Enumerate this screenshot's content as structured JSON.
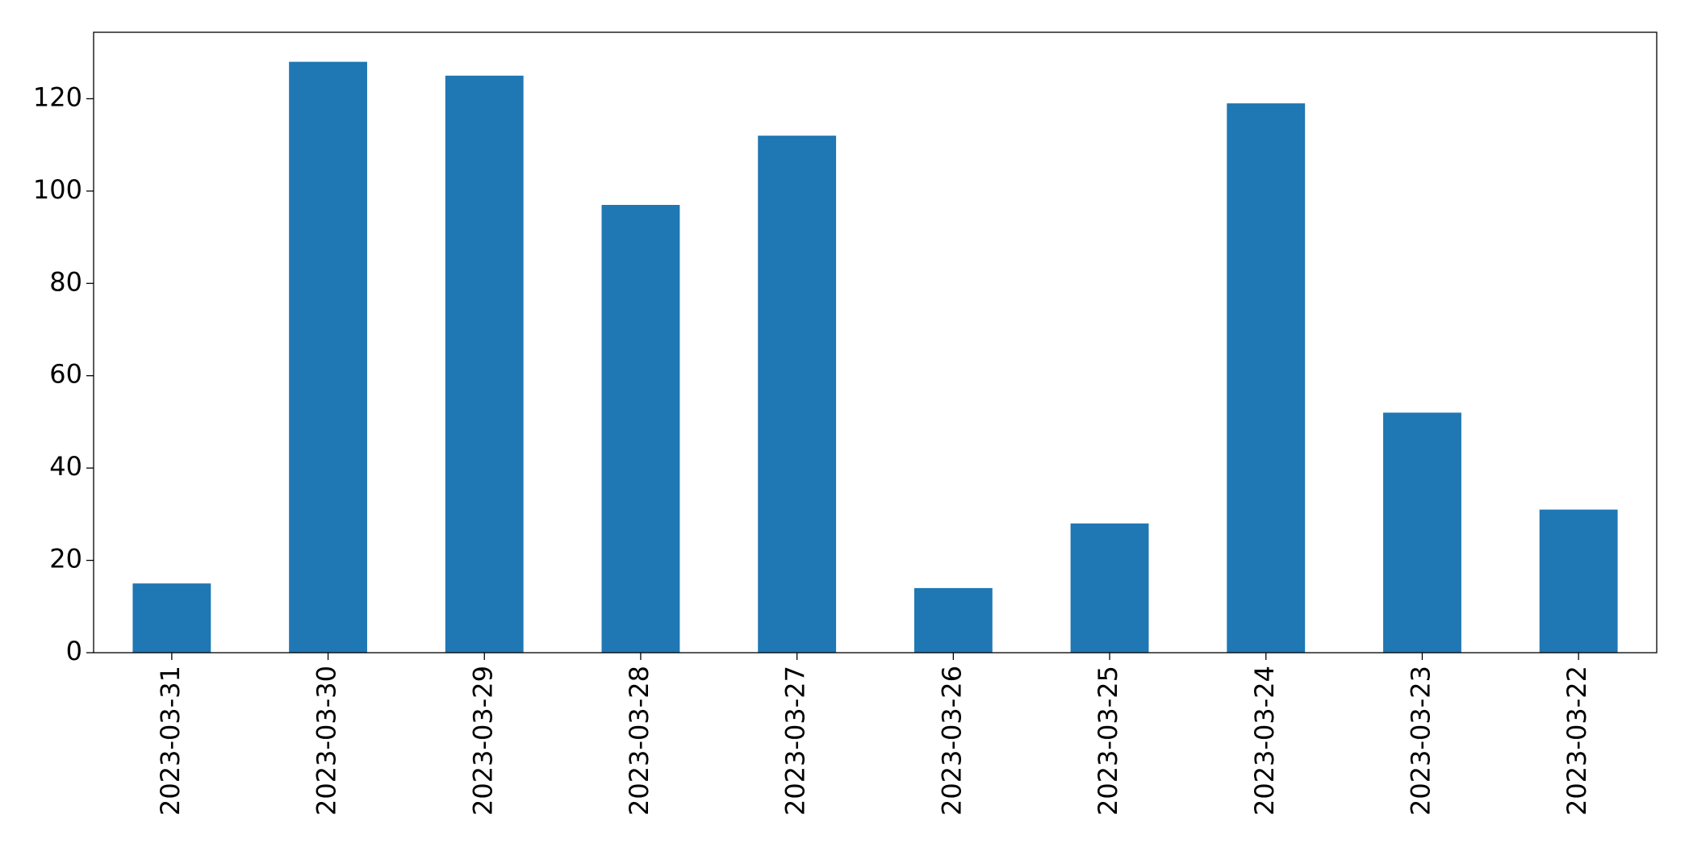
{
  "chart_data": {
    "type": "bar",
    "categories": [
      "2023-03-31",
      "2023-03-30",
      "2023-03-29",
      "2023-03-28",
      "2023-03-27",
      "2023-03-26",
      "2023-03-25",
      "2023-03-24",
      "2023-03-23",
      "2023-03-22"
    ],
    "values": [
      15,
      128,
      125,
      97,
      112,
      14,
      28,
      119,
      52,
      31
    ],
    "color": "#1f77b4",
    "ylim": [
      0,
      134.4
    ],
    "yticks": [
      0,
      20,
      40,
      60,
      80,
      100,
      120
    ],
    "grid": false
  }
}
